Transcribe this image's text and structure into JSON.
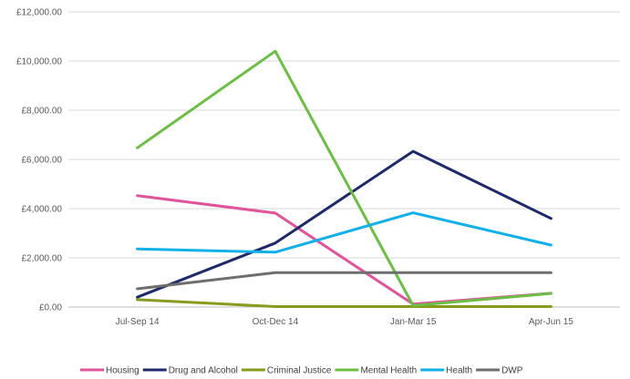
{
  "chart_data": {
    "type": "line",
    "title": "",
    "xlabel": "",
    "ylabel": "",
    "categories": [
      "Jul-Sep 14",
      "Oct-Dec 14",
      "Jan-Mar 15",
      "Apr-Jun 15"
    ],
    "ylim": [
      0,
      12000
    ],
    "yticks": [
      0,
      2000,
      4000,
      6000,
      8000,
      10000,
      12000
    ],
    "ytick_labels": [
      "£0.00",
      "£2,000.00",
      "£4,000.00",
      "£6,000.00",
      "£8,000.00",
      "£10,000.00",
      "£12,000.00"
    ],
    "grid": true,
    "legend_position": "bottom",
    "series": [
      {
        "name": "Housing",
        "color": "#E0559A",
        "values": [
          4530,
          3820,
          120,
          560
        ]
      },
      {
        "name": "Drug and Alcohol",
        "color": "#1F2A6B",
        "values": [
          400,
          2600,
          6330,
          3600
        ]
      },
      {
        "name": "Criminal Justice",
        "color": "#8A9A1E",
        "values": [
          300,
          20,
          20,
          20
        ]
      },
      {
        "name": "Mental Health",
        "color": "#6DBE45",
        "values": [
          6470,
          10400,
          60,
          550
        ]
      },
      {
        "name": "Health",
        "color": "#12B0E8",
        "values": [
          2360,
          2230,
          3830,
          2520
        ]
      },
      {
        "name": "DWP",
        "color": "#6E6E6E",
        "values": [
          740,
          1400,
          1400,
          1400
        ]
      }
    ]
  }
}
